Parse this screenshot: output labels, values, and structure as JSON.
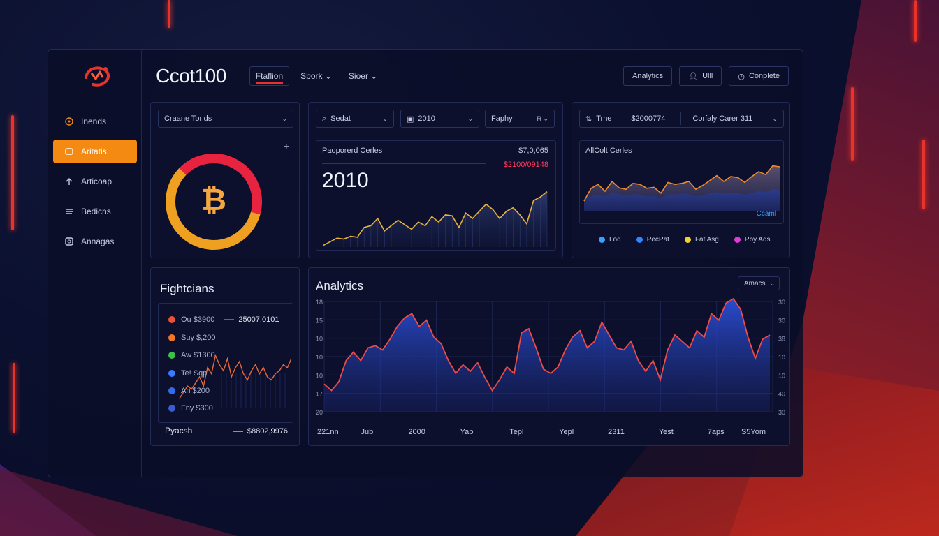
{
  "header": {
    "brand": "Ccot100",
    "tabs": [
      "Ftaflion",
      "Sbork",
      "Sioer"
    ],
    "buttons": [
      "Analytics",
      "Ulll",
      "Conplete"
    ]
  },
  "sidebar": {
    "items": [
      {
        "label": "Inends",
        "icon": "circle-icon"
      },
      {
        "label": "Aritatis",
        "icon": "wallet-icon"
      },
      {
        "label": "Articoap",
        "icon": "arrow-up-icon"
      },
      {
        "label": "Bedicns",
        "icon": "stack-icon"
      },
      {
        "label": "Annagas",
        "icon": "image-icon"
      }
    ]
  },
  "donut_card": {
    "dropdown": "Craane Torlds",
    "plus": "+",
    "symbol": "₿"
  },
  "middle_card": {
    "search": "Sedat",
    "year": "2010",
    "filter": "Faphy",
    "filter_right": "R",
    "title": "Paoporerd Cerles",
    "value_top": "$7,0,065",
    "value_sub": "$2100/09148",
    "big_number": "2010"
  },
  "right_card": {
    "ticker": "Trhe",
    "price": "$2000774",
    "dropdown": "Corfaly Carer 311",
    "title": "AllColt Cerles",
    "corner_label": "Ccaml",
    "legend": [
      {
        "label": "Lod",
        "color": "#3aa0ff"
      },
      {
        "label": "PecPat",
        "color": "#2f86ff"
      },
      {
        "label": "Fat Asg",
        "color": "#f5d22a"
      },
      {
        "label": "Pby Ads",
        "color": "#e23ad6"
      }
    ]
  },
  "fights_card": {
    "title": "Fightcians",
    "rows": [
      {
        "label": "Ou $3900",
        "color": "#e8533a"
      },
      {
        "label": "Suy $,200",
        "color": "#f0772a"
      },
      {
        "label": "Aw $1300",
        "color": "#3fbf4a"
      },
      {
        "label": "Te! Sqp",
        "color": "#3a7cff"
      },
      {
        "label": "An $200",
        "color": "#2f6cf0"
      },
      {
        "label": "Fny $300",
        "color": "#3a5cd0"
      }
    ],
    "top_value": "25007,0101",
    "footer_label": "Pyacsh",
    "footer_value": "$8802,9976"
  },
  "analytics_card": {
    "title": "Analytics",
    "dropdown": "Amacs",
    "y_left": [
      "18",
      "15",
      "10",
      "10",
      "10",
      "17",
      "20"
    ],
    "y_right": [
      "30",
      "30",
      "38",
      "10",
      "10",
      "40",
      "30"
    ],
    "x_labels": [
      "221nn",
      "Jub",
      "2000",
      "Yab",
      "Tepl",
      "Yepl",
      "2311",
      "Yest",
      "7aps",
      "S5Yom"
    ]
  },
  "chart_data": [
    {
      "type": "pie",
      "title": "",
      "values": [
        42,
        58
      ],
      "colors": [
        "#e8233f",
        "#f0a020"
      ]
    },
    {
      "type": "area",
      "title": "Paoporerd Cerles",
      "values": [
        2,
        6,
        10,
        9,
        12,
        11,
        22,
        24,
        32,
        18,
        24,
        30,
        25,
        20,
        28,
        24,
        34,
        28,
        36,
        35,
        22,
        38,
        32,
        40,
        48,
        42,
        32,
        40,
        44,
        36,
        26,
        52,
        56,
        62
      ]
    },
    {
      "type": "area",
      "title": "AllColt Cerles",
      "series": [
        {
          "values": [
            20,
            46,
            54,
            40,
            60,
            47,
            44,
            56,
            54,
            46,
            48,
            36,
            58,
            54,
            56,
            60,
            44,
            52,
            62,
            72,
            60,
            70,
            68,
            58,
            70,
            80,
            74,
            92,
            90
          ]
        },
        {
          "values": [
            22,
            30,
            34,
            30,
            36,
            34,
            32,
            34,
            33,
            30,
            30,
            26,
            34,
            33,
            35,
            34,
            30,
            32,
            36,
            38,
            35,
            37,
            36,
            33,
            36,
            40,
            38,
            44,
            42
          ]
        }
      ]
    },
    {
      "type": "area",
      "title": "Analytics",
      "values": [
        26,
        20,
        28,
        48,
        56,
        48,
        60,
        62,
        58,
        68,
        80,
        88,
        92,
        80,
        86,
        70,
        64,
        48,
        36,
        44,
        38,
        46,
        32,
        20,
        30,
        42,
        36,
        74,
        78,
        60,
        40,
        36,
        42,
        58,
        70,
        76,
        60,
        66,
        84,
        72,
        60,
        58,
        66,
        48,
        38,
        48,
        30,
        58,
        72,
        66,
        60,
        76,
        70,
        92,
        86,
        102,
        106,
        96,
        70,
        50,
        68,
        72
      ],
      "ylim": [
        0,
        110
      ]
    },
    {
      "type": "line",
      "title": "Fightcians",
      "values": [
        2,
        6,
        10,
        8,
        12,
        16,
        10,
        22,
        18,
        30,
        24,
        20,
        28,
        16,
        22,
        26,
        18,
        14,
        20,
        24,
        18,
        22,
        16,
        14,
        18,
        20,
        24,
        22,
        28
      ]
    }
  ]
}
